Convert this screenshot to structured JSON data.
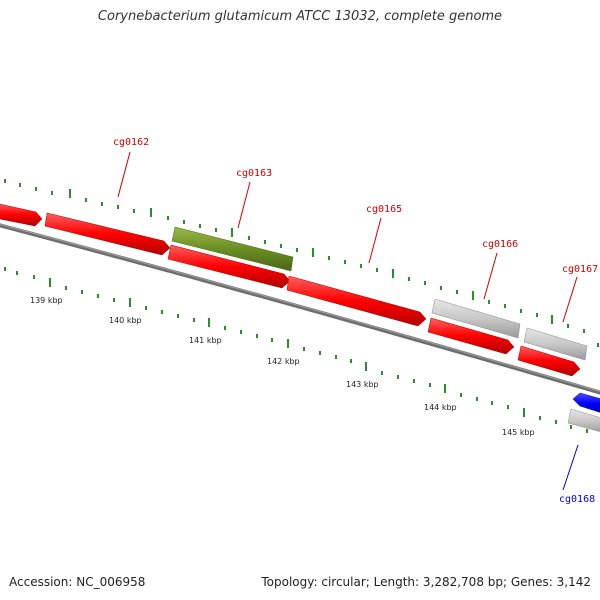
{
  "title": "Corynebacterium glutamicum ATCC 13032, complete genome",
  "footer": {
    "accession": "Accession: NC_006958",
    "stats": "Topology: circular; Length: 3,282,708 bp; Genes: 3,142"
  },
  "colors": {
    "forward_gene": "#ff0000",
    "highlight_gene": "#6b8e23",
    "reverse_gene": "#0000ff",
    "other_gene": "#c8c8c8",
    "backbone": "#777777",
    "tick": "#2e8b2e",
    "forward_label": "#cc0000",
    "reverse_label": "#0000cc"
  },
  "scale_labels": [
    "139 kbp",
    "140 kbp",
    "141 kbp",
    "142 kbp",
    "143 kbp",
    "144 kbp",
    "145 kbp"
  ],
  "gene_labels": [
    {
      "id": "cg0162",
      "strand": "forward"
    },
    {
      "id": "cg0163",
      "strand": "forward"
    },
    {
      "id": "cg0165",
      "strand": "forward"
    },
    {
      "id": "cg0166",
      "strand": "forward"
    },
    {
      "id": "cg0167",
      "strand": "forward"
    },
    {
      "id": "cg0168",
      "strand": "reverse"
    }
  ]
}
